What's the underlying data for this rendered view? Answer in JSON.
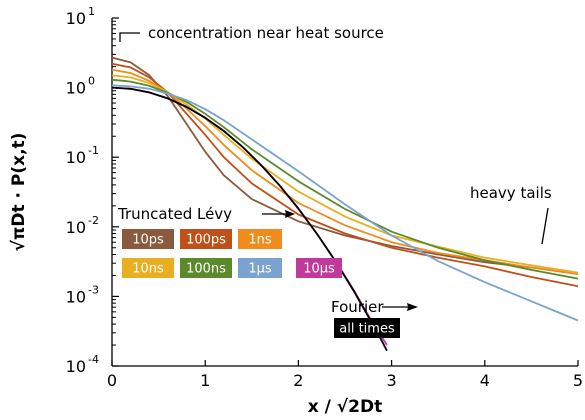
{
  "chart_data": {
    "type": "line",
    "xlabel": "x / √2Dt",
    "ylabel": "√πDt · P(x,t)",
    "x_scale": "linear",
    "y_scale": "log",
    "xlim": [
      0,
      5
    ],
    "ylim": [
      0.0001,
      10
    ],
    "x_ticks": [
      "0",
      "1",
      "2",
      "3",
      "4",
      "5"
    ],
    "y_ticks": [
      {
        "value": 10,
        "base": "10",
        "exp": "1"
      },
      {
        "value": 1,
        "base": "10",
        "exp": "0"
      },
      {
        "value": 0.1,
        "base": "10",
        "exp": "-1"
      },
      {
        "value": 0.01,
        "base": "10",
        "exp": "-2"
      },
      {
        "value": 0.001,
        "base": "10",
        "exp": "-3"
      },
      {
        "value": 0.0001,
        "base": "10",
        "exp": "-4"
      }
    ],
    "grid": false,
    "series": [
      {
        "name": "10ps",
        "color": "#8B5A3C",
        "points": [
          [
            0,
            2.7
          ],
          [
            0.2,
            2.3
          ],
          [
            0.4,
            1.5
          ],
          [
            0.6,
            0.75
          ],
          [
            0.8,
            0.3
          ],
          [
            1.0,
            0.12
          ],
          [
            1.2,
            0.055
          ],
          [
            1.5,
            0.025
          ],
          [
            2.0,
            0.012
          ],
          [
            2.5,
            0.0075
          ],
          [
            3.0,
            0.0053
          ],
          [
            3.5,
            0.004
          ],
          [
            4.0,
            0.0031
          ],
          [
            4.5,
            0.0026
          ],
          [
            5.0,
            0.0021
          ]
        ]
      },
      {
        "name": "100ps",
        "color": "#C0501A",
        "points": [
          [
            0,
            2.2
          ],
          [
            0.2,
            1.95
          ],
          [
            0.4,
            1.4
          ],
          [
            0.6,
            0.85
          ],
          [
            0.8,
            0.42
          ],
          [
            1.0,
            0.21
          ],
          [
            1.2,
            0.1
          ],
          [
            1.5,
            0.042
          ],
          [
            2.0,
            0.015
          ],
          [
            2.5,
            0.008
          ],
          [
            3.0,
            0.005
          ],
          [
            3.5,
            0.0036
          ],
          [
            4.0,
            0.0027
          ],
          [
            4.5,
            0.0019
          ],
          [
            5.0,
            0.0014
          ]
        ]
      },
      {
        "name": "1ns",
        "color": "#F08C1E",
        "points": [
          [
            0,
            1.8
          ],
          [
            0.2,
            1.62
          ],
          [
            0.4,
            1.25
          ],
          [
            0.6,
            0.85
          ],
          [
            0.8,
            0.5
          ],
          [
            1.0,
            0.28
          ],
          [
            1.2,
            0.15
          ],
          [
            1.5,
            0.065
          ],
          [
            2.0,
            0.022
          ],
          [
            2.5,
            0.0105
          ],
          [
            3.0,
            0.006
          ],
          [
            3.5,
            0.0042
          ],
          [
            4.0,
            0.0033
          ],
          [
            4.5,
            0.0026
          ],
          [
            5.0,
            0.0021
          ]
        ]
      },
      {
        "name": "10ns",
        "color": "#E8B020",
        "points": [
          [
            0,
            1.5
          ],
          [
            0.2,
            1.4
          ],
          [
            0.4,
            1.16
          ],
          [
            0.6,
            0.86
          ],
          [
            0.8,
            0.57
          ],
          [
            1.0,
            0.36
          ],
          [
            1.2,
            0.21
          ],
          [
            1.5,
            0.095
          ],
          [
            2.0,
            0.032
          ],
          [
            2.5,
            0.014
          ],
          [
            3.0,
            0.0075
          ],
          [
            3.5,
            0.0052
          ],
          [
            4.0,
            0.0036
          ],
          [
            4.5,
            0.0028
          ],
          [
            5.0,
            0.0022
          ]
        ]
      },
      {
        "name": "100ns",
        "color": "#5A8A2A",
        "points": [
          [
            0,
            1.3
          ],
          [
            0.2,
            1.22
          ],
          [
            0.4,
            1.06
          ],
          [
            0.6,
            0.84
          ],
          [
            0.8,
            0.62
          ],
          [
            1.0,
            0.42
          ],
          [
            1.2,
            0.27
          ],
          [
            1.5,
            0.13
          ],
          [
            2.0,
            0.045
          ],
          [
            2.5,
            0.018
          ],
          [
            3.0,
            0.0085
          ],
          [
            3.5,
            0.005
          ],
          [
            4.0,
            0.0033
          ],
          [
            4.5,
            0.0024
          ],
          [
            5.0,
            0.0018
          ]
        ]
      },
      {
        "name": "1μs",
        "color": "#7BA3CF",
        "points": [
          [
            0,
            1.08
          ],
          [
            0.2,
            1.04
          ],
          [
            0.4,
            0.96
          ],
          [
            0.6,
            0.82
          ],
          [
            0.8,
            0.66
          ],
          [
            1.0,
            0.49
          ],
          [
            1.2,
            0.34
          ],
          [
            1.5,
            0.18
          ],
          [
            2.0,
            0.063
          ],
          [
            2.5,
            0.021
          ],
          [
            3.0,
            0.0075
          ],
          [
            3.5,
            0.0032
          ],
          [
            4.0,
            0.0016
          ],
          [
            4.5,
            0.00085
          ],
          [
            5.0,
            0.00045
          ]
        ]
      },
      {
        "name": "10μs",
        "color": "#C03A9B",
        "points": [
          [
            0,
            1.0
          ],
          [
            0.2,
            0.96
          ],
          [
            0.4,
            0.85
          ],
          [
            0.6,
            0.7
          ],
          [
            0.8,
            0.53
          ],
          [
            1.0,
            0.37
          ],
          [
            1.2,
            0.24
          ],
          [
            1.4,
            0.14
          ],
          [
            1.6,
            0.077
          ],
          [
            1.8,
            0.039
          ],
          [
            2.0,
            0.018
          ],
          [
            2.2,
            0.0079
          ],
          [
            2.4,
            0.0032
          ],
          [
            2.6,
            0.0012
          ],
          [
            2.8,
            0.00041
          ],
          [
            2.95,
            0.0002
          ]
        ]
      },
      {
        "name": "Fourier",
        "color": "#000000",
        "points": [
          [
            0,
            1.0
          ],
          [
            0.2,
            0.961
          ],
          [
            0.4,
            0.852
          ],
          [
            0.6,
            0.698
          ],
          [
            0.8,
            0.527
          ],
          [
            1.0,
            0.368
          ],
          [
            1.2,
            0.237
          ],
          [
            1.4,
            0.141
          ],
          [
            1.6,
            0.077
          ],
          [
            1.8,
            0.039
          ],
          [
            2.0,
            0.0183
          ],
          [
            2.2,
            0.0079
          ],
          [
            2.4,
            0.00315
          ],
          [
            2.6,
            0.00116
          ],
          [
            2.8,
            0.00039
          ],
          [
            2.9,
            0.000223
          ],
          [
            2.95,
            0.000166
          ]
        ]
      }
    ],
    "annotations": {
      "near_source": "concentration near heat source",
      "heavy_tails": "heavy tails",
      "truncated_levy": "Truncated Lévy",
      "fourier": "Fourier",
      "all_times": "all times"
    },
    "legend": {
      "placement": "center-left",
      "items": [
        {
          "label": "10ps",
          "color": "#8B5A3C"
        },
        {
          "label": "100ps",
          "color": "#C0501A"
        },
        {
          "label": "1ns",
          "color": "#F08C1E"
        },
        {
          "label": "10ns",
          "color": "#E8B020"
        },
        {
          "label": "100ns",
          "color": "#5A8A2A"
        },
        {
          "label": "1μs",
          "color": "#7BA3CF"
        },
        {
          "label": "10μs",
          "color": "#C03A9B"
        }
      ]
    }
  }
}
